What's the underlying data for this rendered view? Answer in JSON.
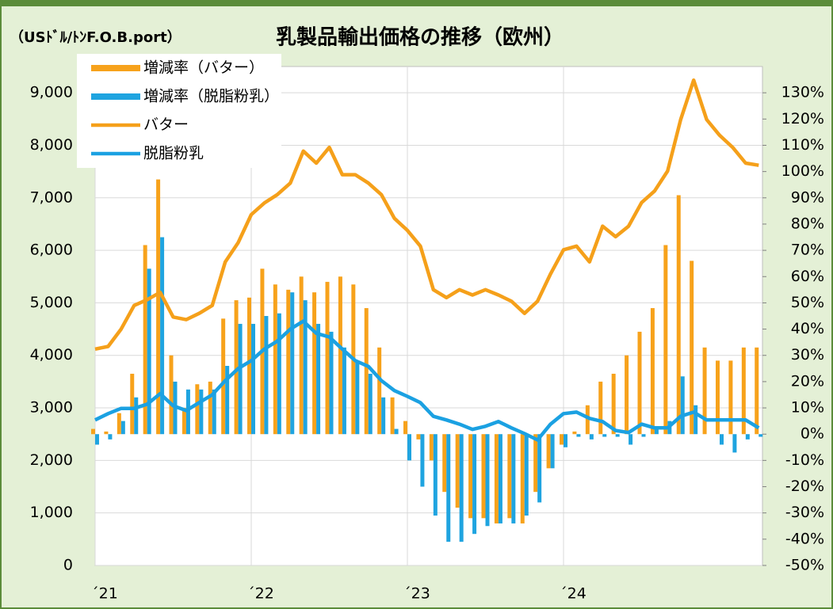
{
  "chart_data": {
    "type": "combo",
    "title": "乳製品輸出価格の推移（欧州）",
    "y_label": "（USﾄﾞﾙ/ﾄﾝF.O.B.port）",
    "categories": [
      "´21",
      null,
      null,
      null,
      null,
      null,
      null,
      null,
      null,
      null,
      null,
      null,
      "´22",
      null,
      null,
      null,
      null,
      null,
      null,
      null,
      null,
      null,
      null,
      null,
      "´23",
      null,
      null,
      null,
      null,
      null,
      null,
      null,
      null,
      null,
      null,
      null,
      "´24",
      null,
      null,
      null,
      null,
      null,
      null,
      null,
      null,
      null,
      null,
      null,
      null,
      null,
      null,
      null
    ],
    "ylim": [
      0,
      9500
    ],
    "yticks": [
      0,
      {
        "value": 1000,
        "label": "1,000"
      },
      {
        "value": 2000,
        "label": "2,000"
      },
      {
        "value": 3000,
        "label": "3,000"
      },
      {
        "value": 4000,
        "label": "4,000"
      },
      {
        "value": 5000,
        "label": "5,000"
      },
      {
        "value": 6000,
        "label": "6,000"
      },
      {
        "value": 7000,
        "label": "7,000"
      },
      {
        "value": 8000,
        "label": "8,000"
      },
      {
        "value": 9000,
        "label": "9,000"
      }
    ],
    "y2lim": [
      -50,
      140
    ],
    "y2ticks": [
      {
        "value": -50,
        "label": "-50%"
      },
      {
        "value": -40,
        "label": "-40%"
      },
      {
        "value": -30,
        "label": "-30%"
      },
      {
        "value": -20,
        "label": "-20%"
      },
      {
        "value": -10,
        "label": "-10%"
      },
      {
        "value": 0,
        "label": "0%"
      },
      {
        "value": 10,
        "label": "10%"
      },
      {
        "value": 20,
        "label": "20%"
      },
      {
        "value": 30,
        "label": "30%"
      },
      {
        "value": 40,
        "label": "40%"
      },
      {
        "value": 50,
        "label": "50%"
      },
      {
        "value": 60,
        "label": "60%"
      },
      {
        "value": 70,
        "label": "70%"
      },
      {
        "value": 80,
        "label": "80%"
      },
      {
        "value": 90,
        "label": "90%"
      },
      {
        "value": 100,
        "label": "100%"
      },
      {
        "value": 110,
        "label": "110%"
      },
      {
        "value": 120,
        "label": "120%"
      },
      {
        "value": 130,
        "label": "130%"
      }
    ],
    "grid": true,
    "legend": "upper left",
    "series": [
      {
        "name": "増減率（バター）",
        "type": "bar",
        "axis": "y2",
        "color": "#f7a21b",
        "values": [
          2,
          1,
          8,
          23,
          72,
          97,
          30,
          10,
          19,
          20,
          44,
          51,
          52,
          63,
          57,
          55,
          60,
          54,
          58,
          60,
          57,
          48,
          33,
          14,
          5,
          -2,
          -10,
          -22,
          -28,
          -32,
          -32,
          -34,
          -32,
          -34,
          -22,
          -13,
          -4,
          1,
          11,
          20,
          23,
          30,
          39,
          48,
          72,
          91,
          66,
          33,
          28,
          28,
          33,
          33
        ]
      },
      {
        "name": "増減率（脱脂粉乳）",
        "type": "bar",
        "axis": "y2",
        "color": "#1fa4e0",
        "values": [
          -4,
          -2,
          5,
          14,
          63,
          75,
          20,
          17,
          17,
          17,
          26,
          42,
          42,
          45,
          46,
          54,
          51,
          42,
          39,
          33,
          28,
          23,
          14,
          2,
          -10,
          -20,
          -31,
          -41,
          -41,
          -38,
          -35,
          -34,
          -34,
          -31,
          -26,
          -13,
          -5,
          -1,
          -2,
          -1,
          -1,
          -4,
          -1,
          2,
          5,
          22,
          11,
          0,
          -4,
          -7,
          -2,
          -1
        ]
      },
      {
        "name": "バター",
        "type": "line",
        "color": "#f5a01a",
        "values": [
          4120,
          4170,
          4500,
          4950,
          5060,
          5200,
          4730,
          4680,
          4800,
          4950,
          5780,
          6150,
          6680,
          6900,
          7060,
          7280,
          7890,
          7660,
          7960,
          7440,
          7440,
          7280,
          7060,
          6610,
          6380,
          6080,
          5250,
          5100,
          5250,
          5150,
          5250,
          5150,
          5030,
          4800,
          5030,
          5550,
          6010,
          6080,
          5780,
          6460,
          6260,
          6460,
          6910,
          7130,
          7510,
          8490,
          9240,
          8490,
          8190,
          7960,
          7660,
          7620
        ]
      },
      {
        "name": "脱脂粉乳",
        "type": "line",
        "color": "#1ba1e2",
        "values": [
          2770,
          2890,
          2990,
          2990,
          3070,
          3270,
          3040,
          2950,
          3100,
          3250,
          3520,
          3750,
          3900,
          4120,
          4270,
          4500,
          4650,
          4420,
          4350,
          4120,
          3900,
          3790,
          3520,
          3330,
          3220,
          3100,
          2840,
          2770,
          2690,
          2590,
          2650,
          2740,
          2620,
          2510,
          2390,
          2690,
          2890,
          2920,
          2800,
          2740,
          2570,
          2530,
          2690,
          2620,
          2620,
          2840,
          2920,
          2770,
          2770,
          2770,
          2770,
          2620
        ]
      }
    ]
  }
}
